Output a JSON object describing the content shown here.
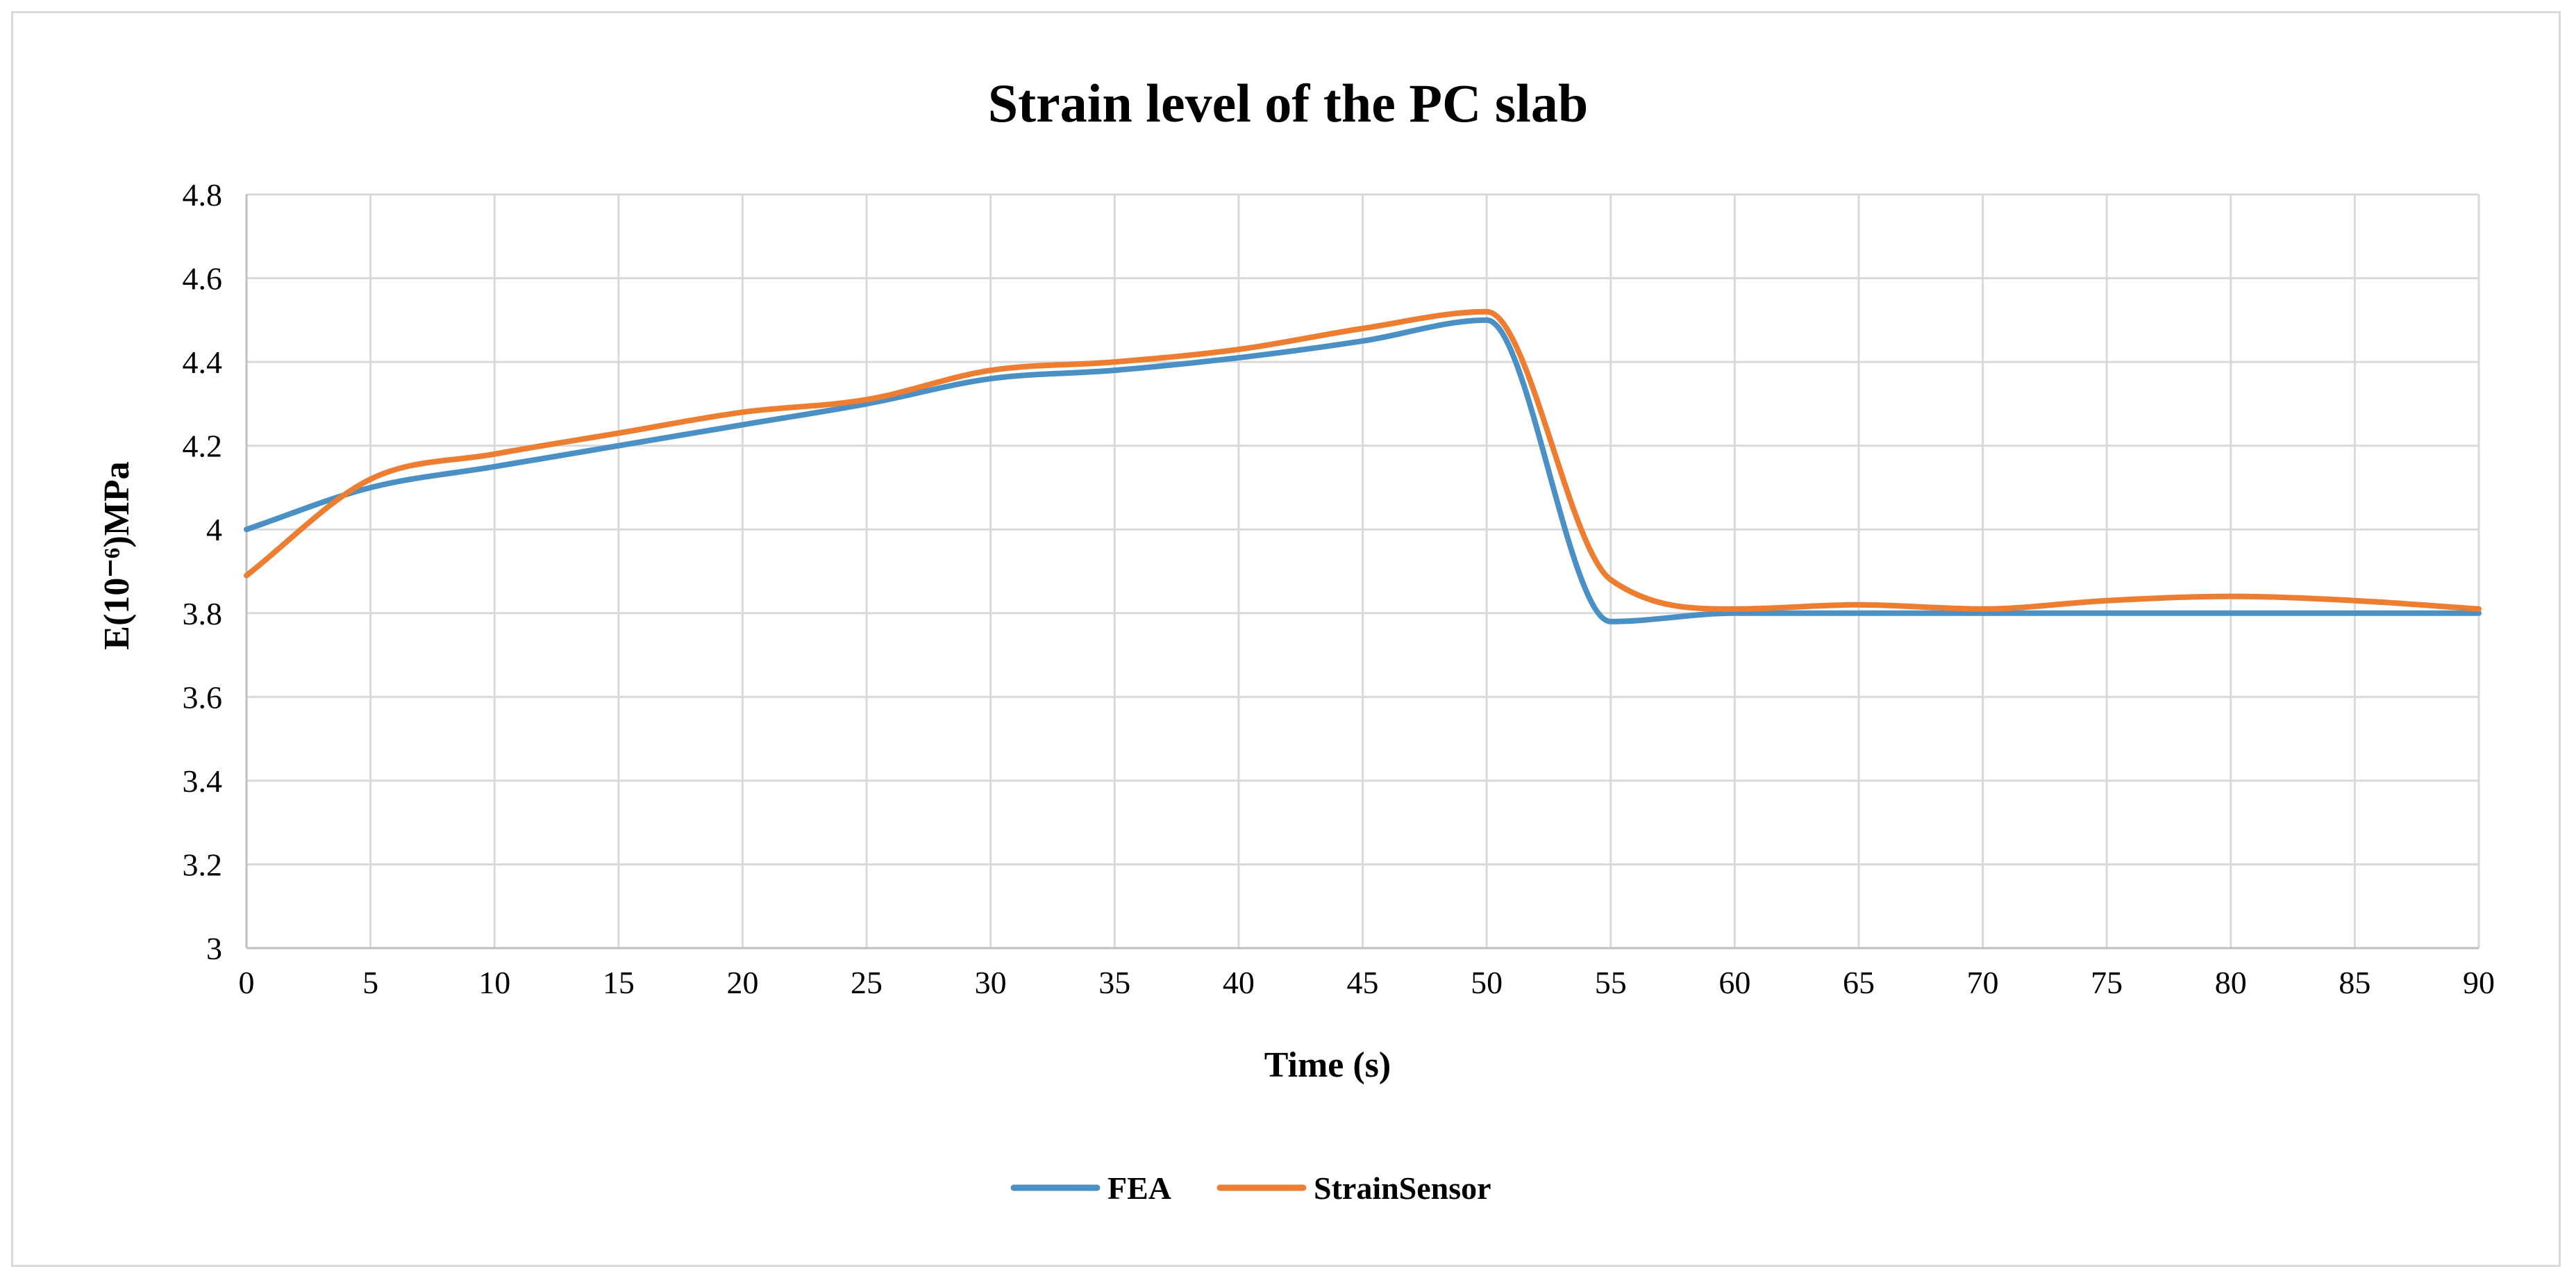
{
  "chart_data": {
    "type": "line",
    "title": "Strain level of the PC slab",
    "xlabel": "Time  (s)",
    "ylabel": "E(10⁻⁶)MPa",
    "xlim": [
      0,
      90
    ],
    "ylim": [
      3,
      4.8
    ],
    "x_ticks": [
      0,
      5,
      10,
      15,
      20,
      25,
      30,
      35,
      40,
      45,
      50,
      55,
      60,
      65,
      70,
      75,
      80,
      85,
      90
    ],
    "y_ticks": [
      "3",
      "3.2",
      "3.4",
      "3.6",
      "3.8",
      "4",
      "4.2",
      "4.4",
      "4.6",
      "4.8"
    ],
    "grid": true,
    "legend_position": "bottom",
    "x": [
      0,
      5,
      10,
      15,
      20,
      25,
      30,
      35,
      40,
      45,
      50,
      55,
      60,
      65,
      70,
      75,
      80,
      85,
      90
    ],
    "series": [
      {
        "name": "FEA",
        "color": "#4a90c4",
        "values": [
          4.0,
          4.1,
          4.15,
          4.2,
          4.25,
          4.3,
          4.36,
          4.38,
          4.41,
          4.45,
          4.5,
          3.78,
          3.8,
          3.8,
          3.8,
          3.8,
          3.8,
          3.8,
          3.8
        ]
      },
      {
        "name": "StrainSensor",
        "color": "#ed7d31",
        "values": [
          3.89,
          4.12,
          4.18,
          4.23,
          4.28,
          4.31,
          4.38,
          4.4,
          4.43,
          4.48,
          4.52,
          3.88,
          3.81,
          3.82,
          3.81,
          3.83,
          3.84,
          3.83,
          3.81
        ]
      }
    ]
  }
}
